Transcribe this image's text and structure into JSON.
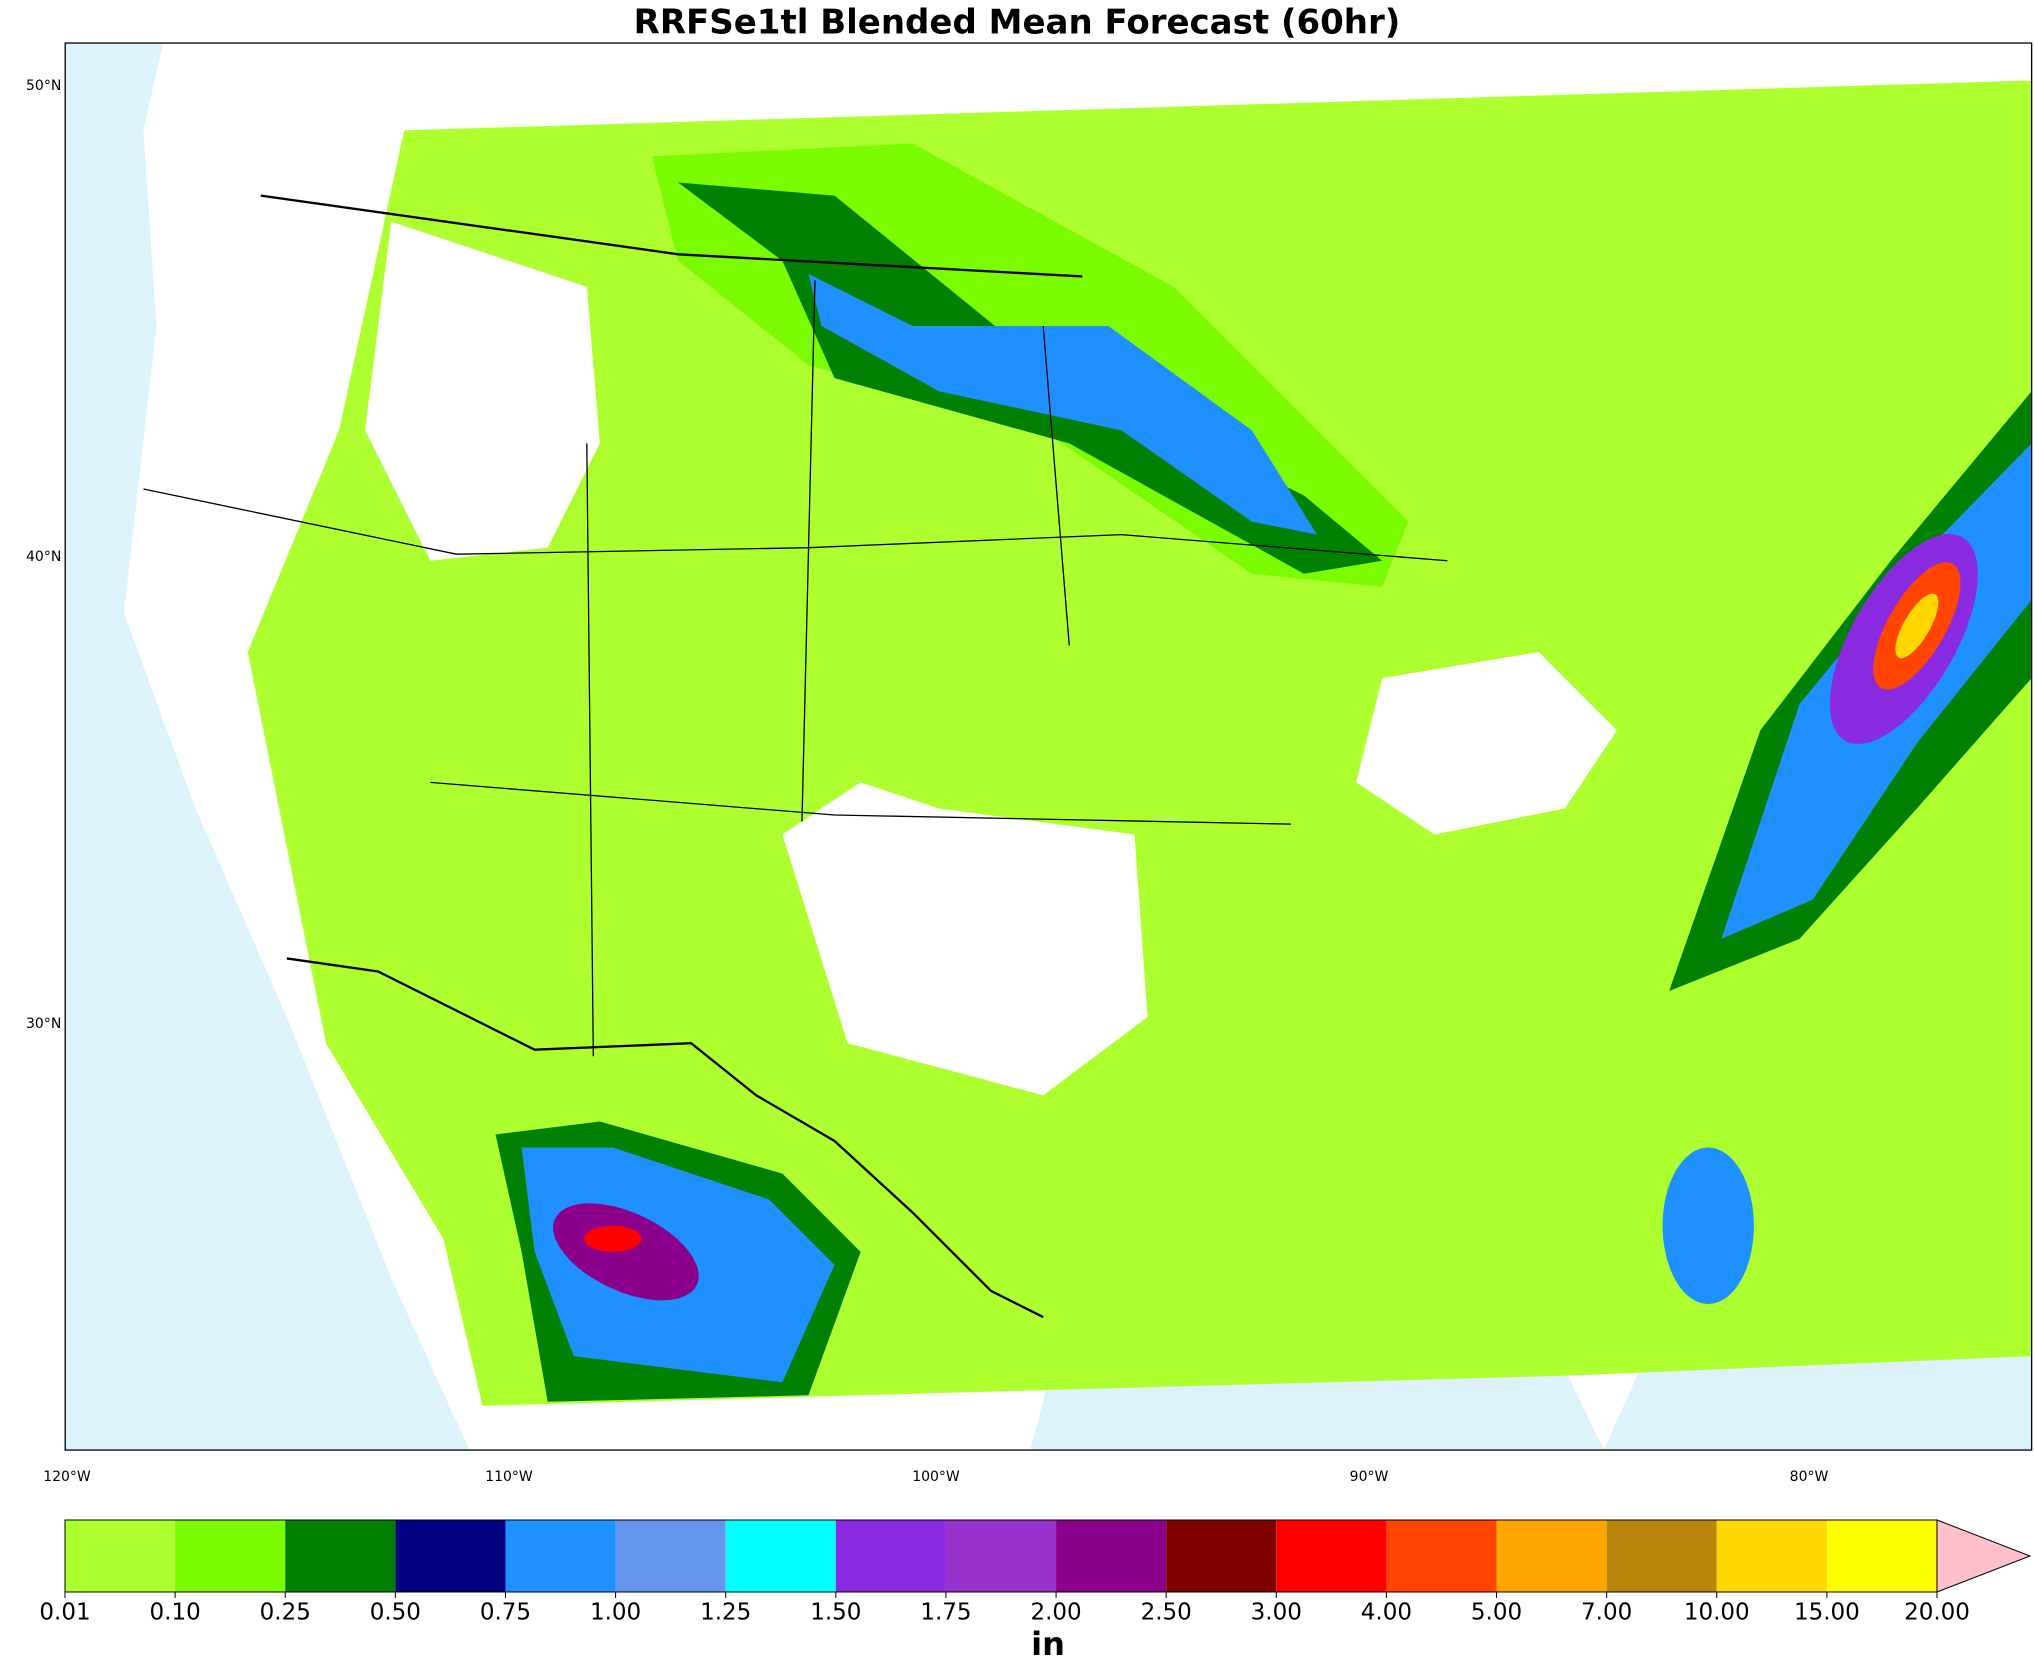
{
  "title": "RRFSe1tl Blended Mean Forecast (60hr)",
  "map": {
    "lat_labels": [
      "50°N",
      "40°N",
      "30°N"
    ],
    "lon_labels": [
      "120°W",
      "110°W",
      "100°W",
      "90°W",
      "80°W"
    ]
  },
  "colorbar": {
    "levels": [
      {
        "value": 0.01,
        "label": "0.01"
      },
      {
        "value": 0.1,
        "label": "0.10"
      },
      {
        "value": 0.25,
        "label": "0.25"
      },
      {
        "value": 0.5,
        "label": "0.50"
      },
      {
        "value": 0.75,
        "label": "0.75"
      },
      {
        "value": 1,
        "label": "1.00"
      },
      {
        "value": 1.25,
        "label": "1.25"
      },
      {
        "value": 1.5,
        "label": "1.50"
      },
      {
        "value": 1.75,
        "label": "1.75"
      },
      {
        "value": 2,
        "label": "2.00"
      },
      {
        "value": 2.5,
        "label": "2.50"
      },
      {
        "value": 3,
        "label": "3.00"
      },
      {
        "value": 4,
        "label": "4.00"
      },
      {
        "value": 5,
        "label": "5.00"
      },
      {
        "value": 7,
        "label": "7.00"
      },
      {
        "value": 10,
        "label": "10.00"
      },
      {
        "value": 15,
        "label": "15.00"
      },
      {
        "value": 20,
        "label": "20.00"
      }
    ],
    "colors": [
      "#adff2f",
      "#7cfc00",
      "#008000",
      "#000080",
      "#1e90ff",
      "#6495ed",
      "#00ffff",
      "#8a2be2",
      "#9932cc",
      "#8b008b",
      "#800000",
      "#ff0000",
      "#ff4500",
      "#ffa500",
      "#b8860b",
      "#ffd700",
      "#ffff00"
    ],
    "extend_color": "#ffc0cb",
    "unit": "in"
  }
}
